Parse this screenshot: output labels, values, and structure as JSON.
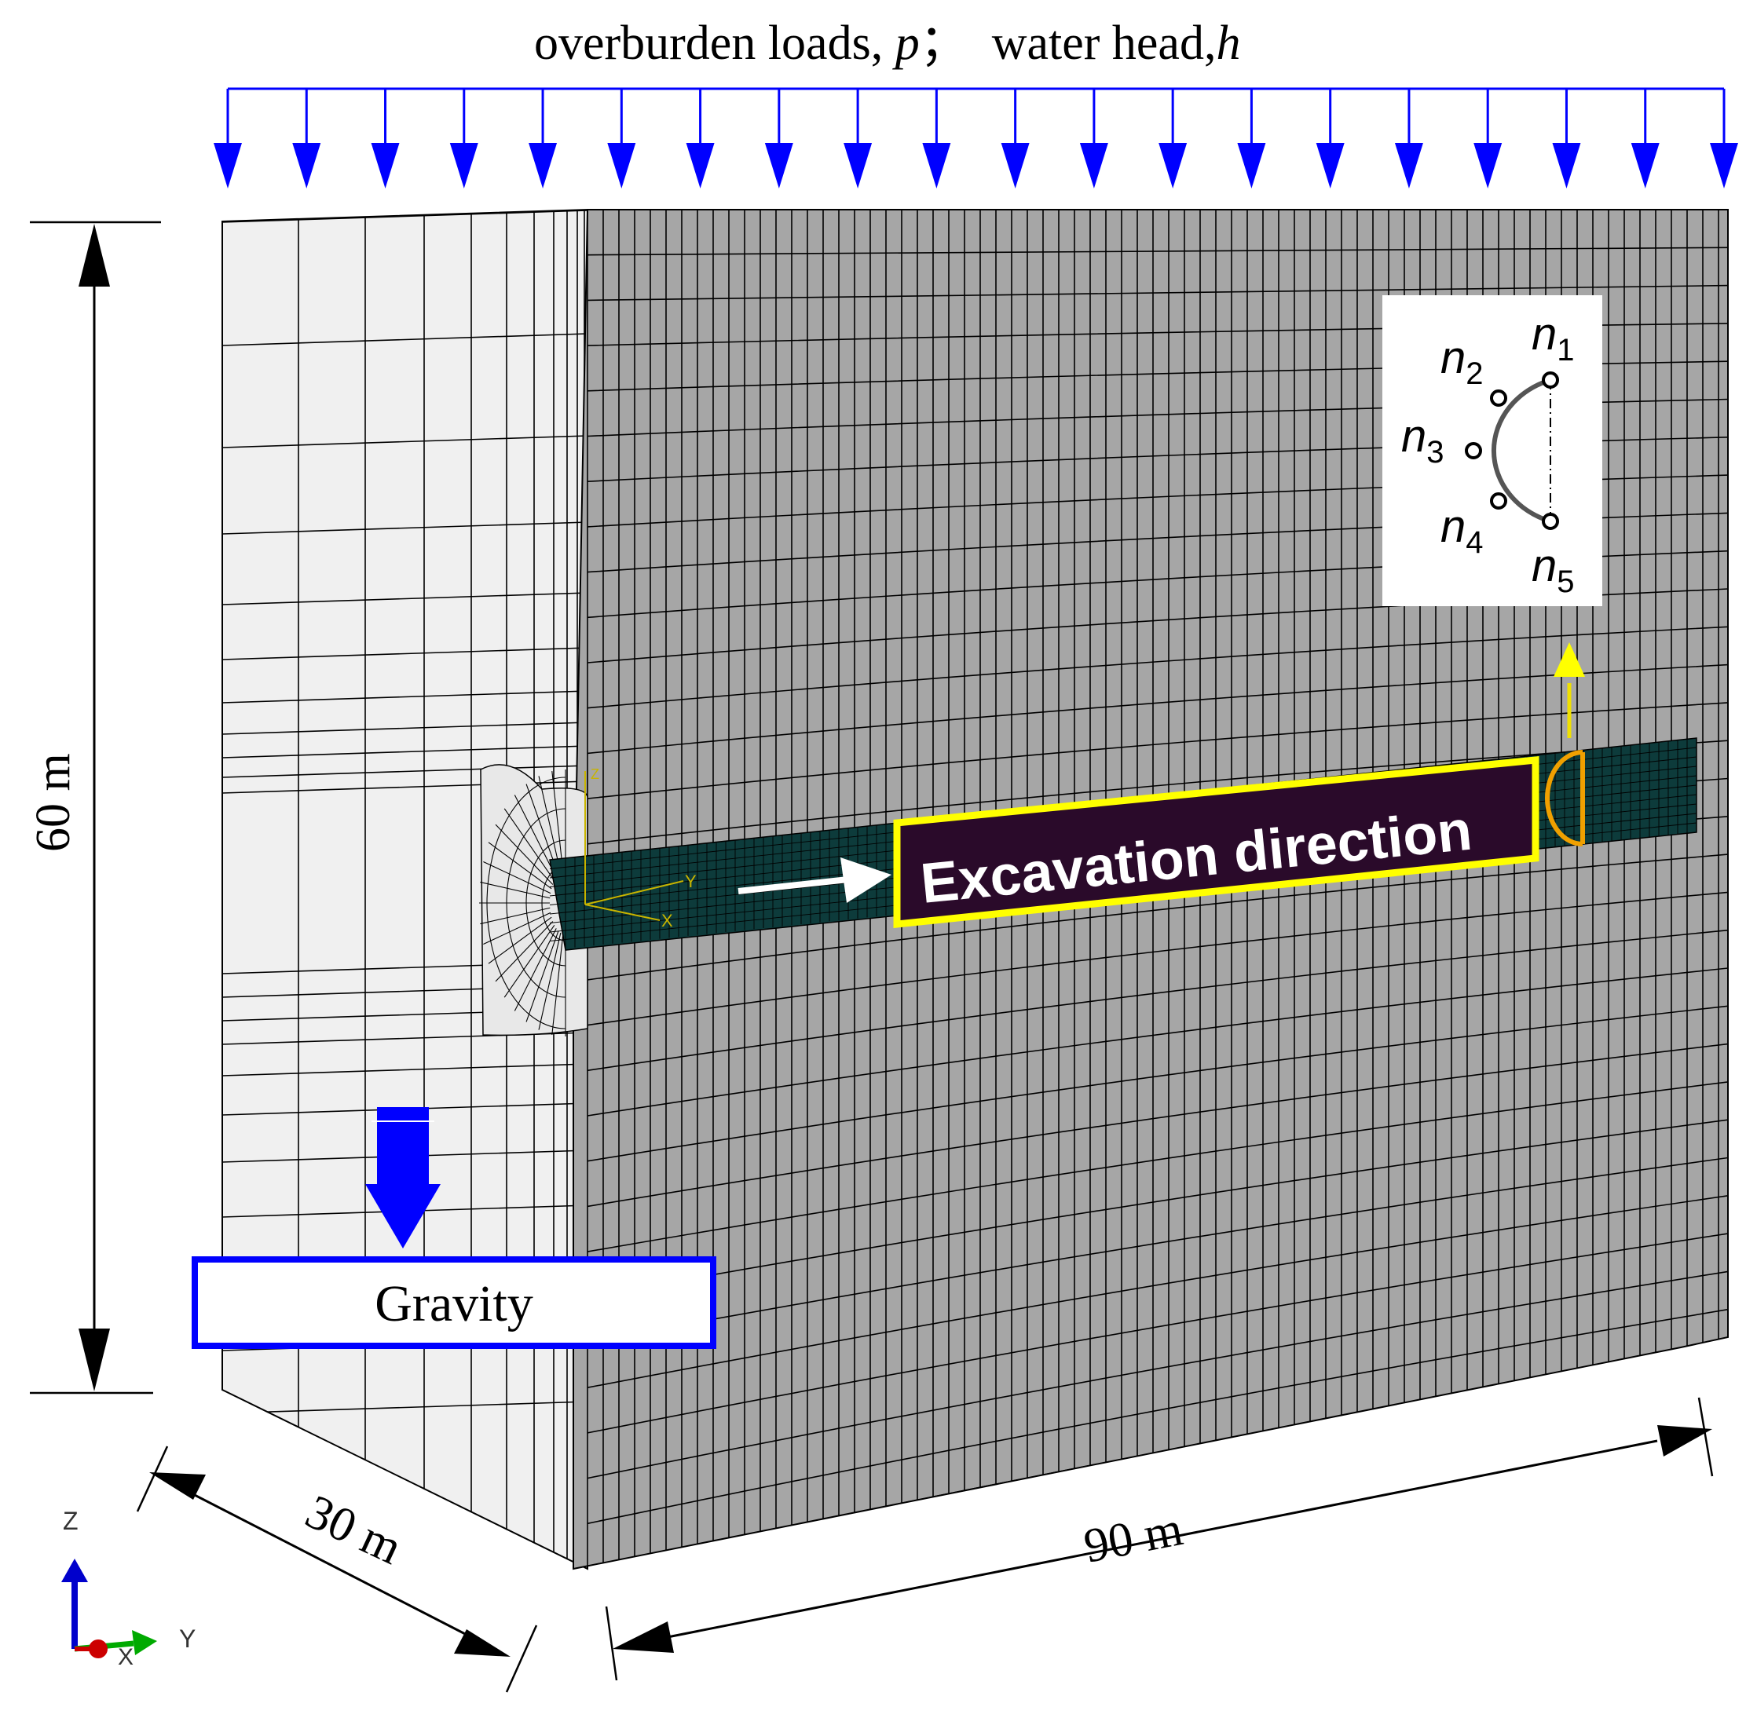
{
  "title": {
    "loads_text": "overburden loads, ",
    "loads_symbol": "p",
    "separator": "；",
    "water_text": "water head,",
    "water_symbol": "h"
  },
  "dimensions": {
    "height_label": "60 m",
    "width_label": "30 m",
    "length_label": "90 m"
  },
  "gravity_label": "Gravity",
  "excavation_label": "Excavation direction",
  "monitoring_nodes": [
    {
      "symbol": "n",
      "sub": "1"
    },
    {
      "symbol": "n",
      "sub": "2"
    },
    {
      "symbol": "n",
      "sub": "3"
    },
    {
      "symbol": "n",
      "sub": "4"
    },
    {
      "symbol": "n",
      "sub": "5"
    }
  ],
  "local_axes": {
    "z": "Z",
    "y": "Y",
    "x": "X"
  },
  "global_axes": {
    "z": "Z",
    "y": "Y",
    "x": "X"
  },
  "colors": {
    "load_arrows": "#0000ff",
    "front_face": "#a6a6a6",
    "side_face": "#f0f0f0",
    "tunnel": "#0d3b3b",
    "highlight": "#ffff00",
    "label_box": "#2a0a2a",
    "lining_outline": "#f0a000",
    "gravity_box": "#0000ff"
  }
}
